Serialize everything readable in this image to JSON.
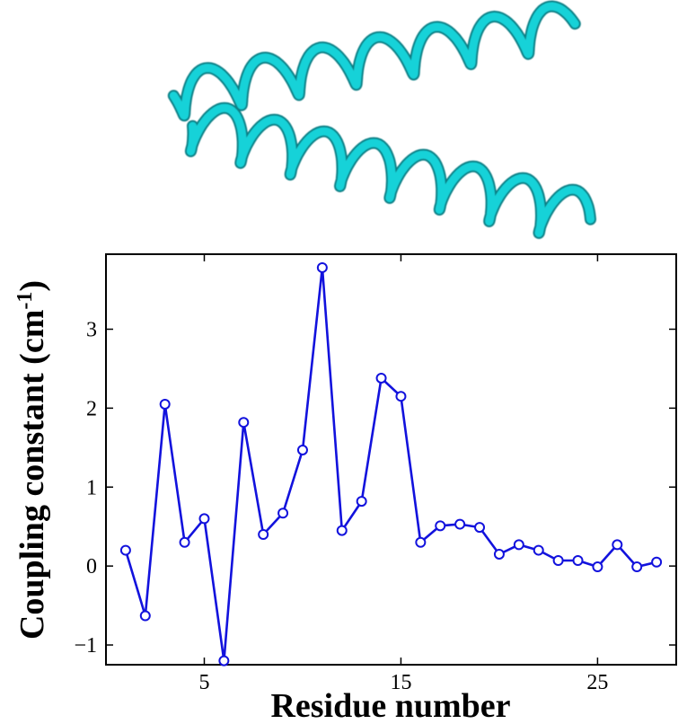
{
  "illustration": {
    "description_icon": "coiled-coil-helix-ribbon",
    "color": "#19d2d8",
    "shadow_color": "#0b7f85"
  },
  "chart_data": {
    "type": "line",
    "xlabel": "Residue number",
    "ylabel": "Coupling constant (cm",
    "ylabel_sup": "-1",
    "ylabel_close": ")",
    "xlim": [
      0,
      29
    ],
    "ylim": [
      -1.25,
      3.95
    ],
    "xticks": [
      5,
      15,
      25
    ],
    "xtick_labels": [
      "5",
      "15",
      "25"
    ],
    "yticks": [
      -1,
      0,
      1,
      2,
      3
    ],
    "ytick_labels": [
      "−1",
      "0",
      "1",
      "2",
      "3"
    ],
    "grid": false,
    "line_color": "#1212dd",
    "marker": "circle-open",
    "series": [
      {
        "x": [
          1,
          2,
          3,
          4,
          5,
          6,
          7,
          8,
          9,
          10,
          11,
          12,
          13,
          14,
          15,
          16,
          17,
          18,
          19,
          20,
          21,
          22,
          23,
          24,
          25,
          26,
          27,
          28
        ],
        "values": [
          0.2,
          -0.63,
          2.05,
          0.3,
          0.6,
          -1.2,
          1.82,
          0.4,
          0.67,
          1.47,
          3.78,
          0.45,
          0.82,
          2.38,
          2.15,
          0.3,
          0.51,
          0.53,
          0.49,
          0.15,
          0.27,
          0.2,
          0.07,
          0.07,
          -0.01,
          0.27,
          -0.01,
          0.05
        ]
      }
    ]
  }
}
